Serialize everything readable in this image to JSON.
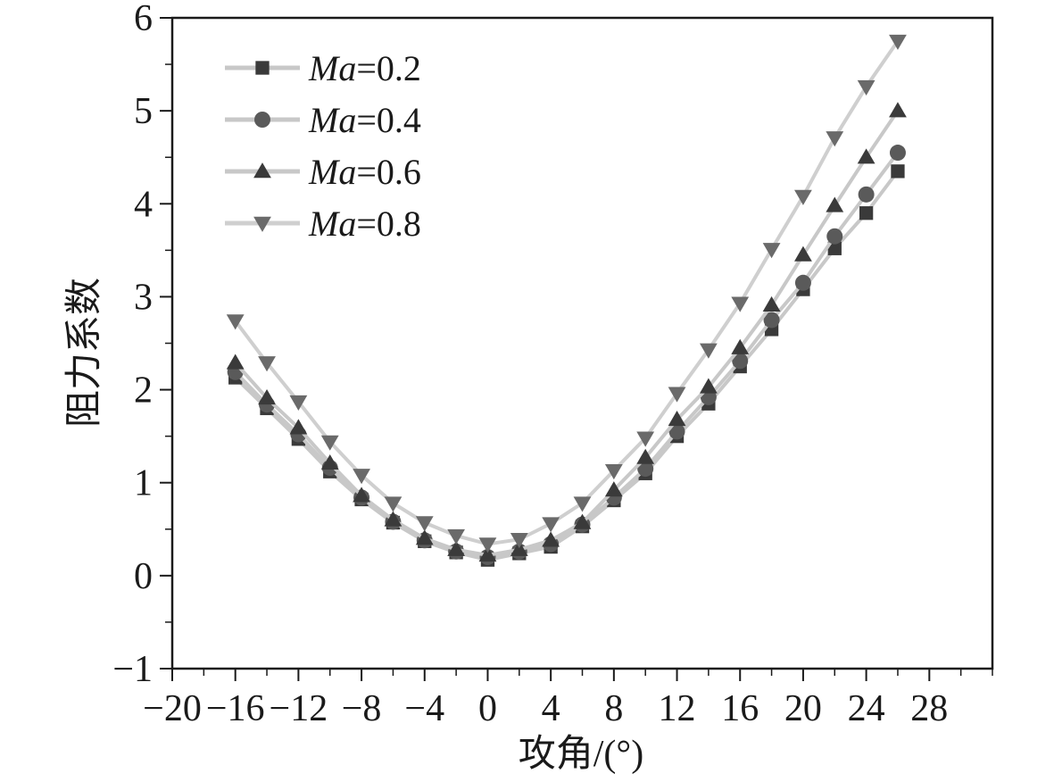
{
  "chart_data": {
    "type": "line",
    "title": "",
    "xlabel": "攻角/(°)",
    "ylabel": "阻力系数",
    "xlim": [
      -20,
      32
    ],
    "ylim": [
      -1,
      6
    ],
    "xticks": [
      -20,
      -16,
      -12,
      -8,
      -4,
      0,
      4,
      8,
      12,
      16,
      20,
      24,
      28
    ],
    "xtick_labels": [
      "−20",
      "−16",
      "−12",
      "−8",
      "−4",
      "0",
      "4",
      "8",
      "12",
      "16",
      "20",
      "24",
      "28"
    ],
    "yticks": [
      -1,
      0,
      1,
      2,
      3,
      4,
      5,
      6
    ],
    "ytick_labels": [
      "−1",
      "0",
      "1",
      "2",
      "3",
      "4",
      "5",
      "6"
    ],
    "grid": false,
    "legend_position": "top-left",
    "x": [
      -16,
      -14,
      -12,
      -10,
      -8,
      -6,
      -4,
      -2,
      0,
      2,
      4,
      6,
      8,
      10,
      12,
      14,
      16,
      18,
      20,
      22,
      24,
      26
    ],
    "series": [
      {
        "name": "Ma=0.2",
        "name_italic": "Ma",
        "name_rest": "=0.2",
        "marker": "square",
        "color": "#3a3a3a",
        "line_color": "#c8c8c8",
        "values": [
          2.13,
          1.8,
          1.47,
          1.12,
          0.82,
          0.57,
          0.37,
          0.25,
          0.17,
          0.24,
          0.31,
          0.53,
          0.81,
          1.1,
          1.5,
          1.85,
          2.25,
          2.65,
          3.08,
          3.52,
          3.9,
          4.35
        ]
      },
      {
        "name": "Ma=0.4",
        "name_italic": "Ma",
        "name_rest": "=0.4",
        "marker": "circle",
        "color": "#5a5a5a",
        "line_color": "#c8c8c8",
        "values": [
          2.19,
          1.84,
          1.52,
          1.16,
          0.84,
          0.58,
          0.38,
          0.26,
          0.2,
          0.26,
          0.34,
          0.55,
          0.84,
          1.15,
          1.55,
          1.92,
          2.31,
          2.75,
          3.15,
          3.65,
          4.1,
          4.55
        ]
      },
      {
        "name": "Ma=0.6",
        "name_italic": "Ma",
        "name_rest": "=0.6",
        "marker": "triangle-up",
        "color": "#3a3a3a",
        "line_color": "#c8c8c8",
        "values": [
          2.29,
          1.91,
          1.59,
          1.21,
          0.86,
          0.6,
          0.4,
          0.28,
          0.22,
          0.28,
          0.38,
          0.57,
          0.92,
          1.27,
          1.68,
          2.03,
          2.45,
          2.91,
          3.45,
          3.98,
          4.5,
          5.0
        ]
      },
      {
        "name": "Ma=0.8",
        "name_italic": "Ma",
        "name_rest": "=0.8",
        "marker": "triangle-down",
        "color": "#6a6a6a",
        "line_color": "#cfcfcf",
        "values": [
          2.74,
          2.29,
          1.87,
          1.44,
          1.08,
          0.78,
          0.57,
          0.43,
          0.34,
          0.39,
          0.56,
          0.78,
          1.13,
          1.48,
          1.96,
          2.43,
          2.93,
          3.51,
          4.08,
          4.71,
          5.26,
          5.75
        ]
      }
    ]
  }
}
